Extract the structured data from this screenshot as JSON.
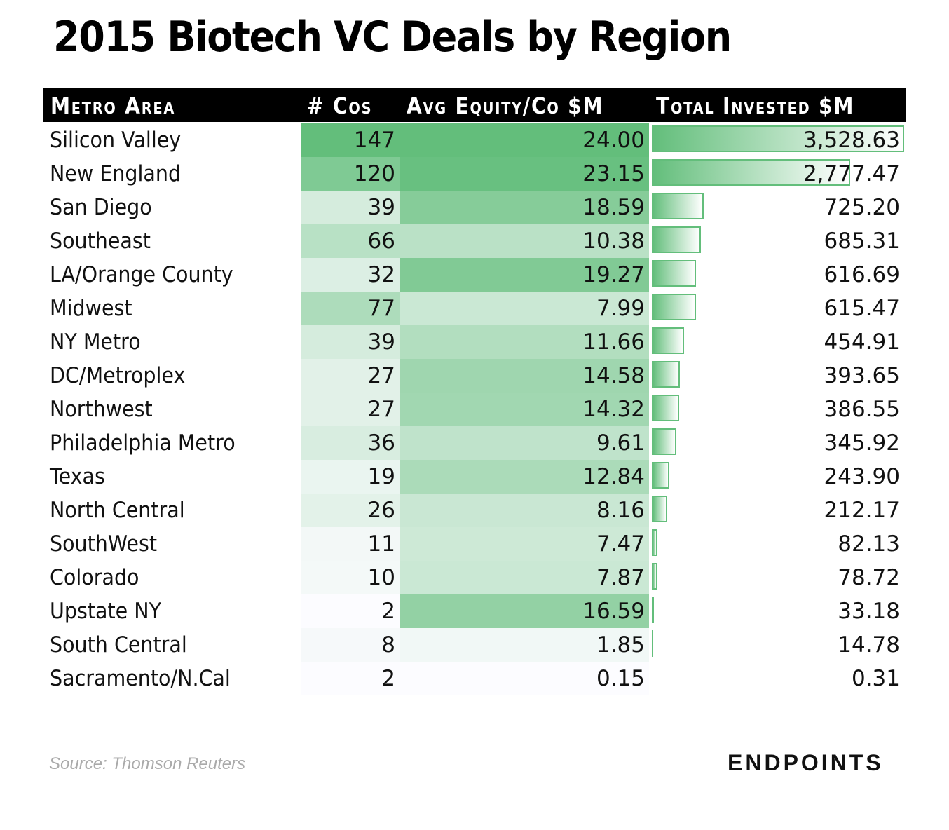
{
  "chart_data": {
    "type": "table",
    "title": "2015 Biotech VC Deals by Region",
    "columns": [
      "Metro Area",
      "# Cos",
      "Avg Equity/Co $M",
      "Total Invested $M"
    ],
    "rows": [
      [
        "Silicon Valley",
        147,
        "24.00",
        "3,528.63"
      ],
      [
        "New England",
        120,
        "23.15",
        "2,777.47"
      ],
      [
        "San Diego",
        39,
        "18.59",
        "725.20"
      ],
      [
        "Southeast",
        66,
        "10.38",
        "685.31"
      ],
      [
        "LA/Orange County",
        32,
        "19.27",
        "616.69"
      ],
      [
        "Midwest",
        77,
        "7.99",
        "615.47"
      ],
      [
        "NY Metro",
        39,
        "11.66",
        "454.91"
      ],
      [
        "DC/Metroplex",
        27,
        "14.58",
        "393.65"
      ],
      [
        "Northwest",
        27,
        "14.32",
        "386.55"
      ],
      [
        "Philadelphia Metro",
        36,
        "9.61",
        "345.92"
      ],
      [
        "Texas",
        19,
        "12.84",
        "243.90"
      ],
      [
        "North Central",
        26,
        "8.16",
        "212.17"
      ],
      [
        "SouthWest",
        11,
        "7.47",
        "82.13"
      ],
      [
        "Colorado",
        10,
        "7.87",
        "78.72"
      ],
      [
        "Upstate NY",
        2,
        "16.59",
        "33.18"
      ],
      [
        "South Central",
        8,
        "1.85",
        "14.78"
      ],
      [
        "Sacramento/N.Cal",
        2,
        "0.15",
        "0.31"
      ]
    ],
    "colors": {
      "scale_high": "#63be7b",
      "scale_low": "#fcfcff",
      "header_bg": "#000000"
    }
  },
  "source": "Source: Thomson Reuters",
  "logo": "ENDPOINTS"
}
